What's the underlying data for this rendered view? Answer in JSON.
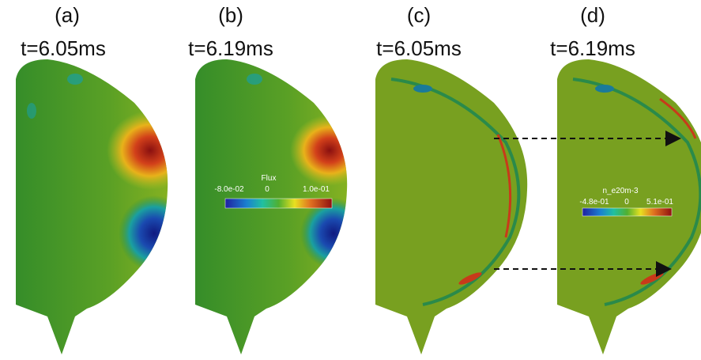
{
  "panels": [
    {
      "label": "(a)",
      "time": "t=6.05ms"
    },
    {
      "label": "(b)",
      "time": "t=6.19ms"
    },
    {
      "label": "(c)",
      "time": "t=6.05ms"
    },
    {
      "label": "(d)",
      "time": "t=6.19ms"
    }
  ],
  "colorbars": [
    {
      "title": "Flux",
      "min": "-8.0e-02",
      "mid": "0",
      "max": "1.0e-01"
    },
    {
      "title": "n_e20m-3",
      "min": "-4.8e-01",
      "mid": "0",
      "max": "5.1e-01"
    }
  ]
}
